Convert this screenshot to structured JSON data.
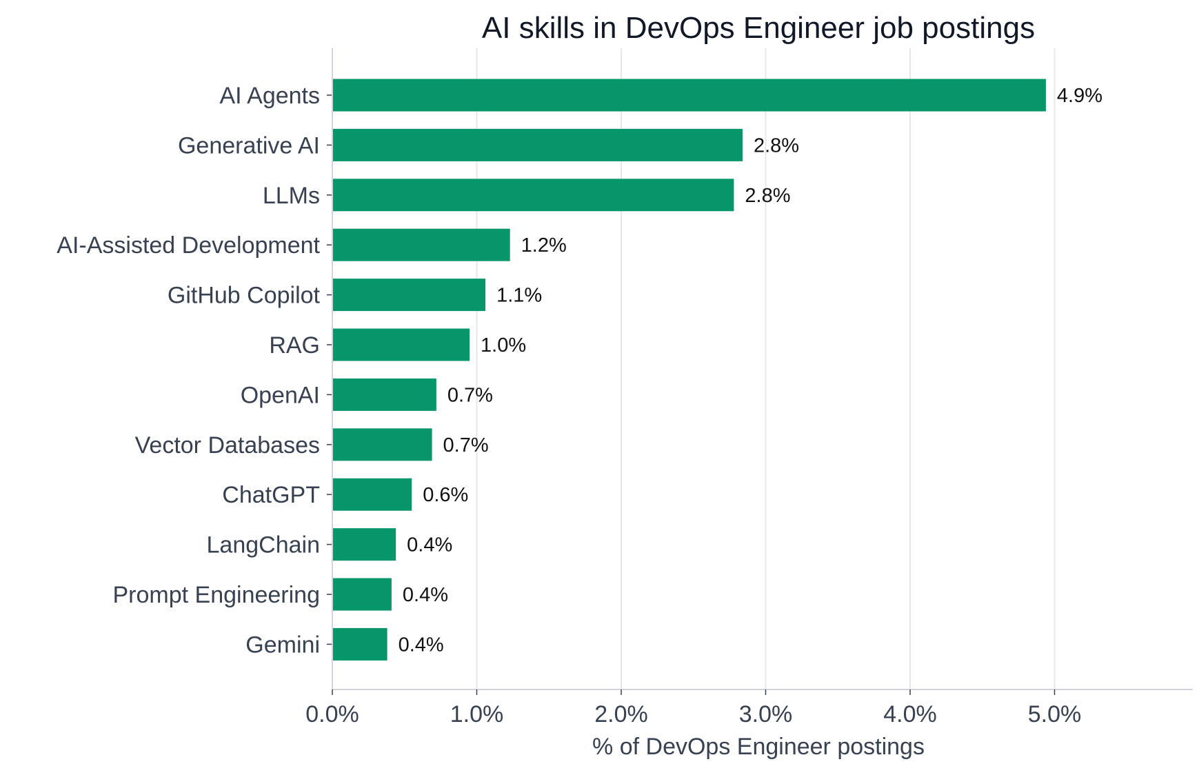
{
  "chart_data": {
    "type": "bar",
    "orientation": "horizontal",
    "title": "AI skills in DevOps Engineer job postings",
    "xlabel": "% of DevOps Engineer postings",
    "ylabel": "",
    "xlim": [
      0,
      5.9
    ],
    "xticks": [
      0,
      1,
      2,
      3,
      4,
      5
    ],
    "xtick_labels": [
      "0.0%",
      "1.0%",
      "2.0%",
      "3.0%",
      "4.0%",
      "5.0%"
    ],
    "grid": "vertical",
    "legend": "none",
    "bar_color": "#079669",
    "categories": [
      "AI Agents",
      "Generative AI",
      "LLMs",
      "AI-Assisted Development",
      "GitHub Copilot",
      "RAG",
      "OpenAI",
      "Vector Databases",
      "ChatGPT",
      "LangChain",
      "Prompt Engineering",
      "Gemini"
    ],
    "values": [
      4.94,
      2.84,
      2.78,
      1.23,
      1.06,
      0.95,
      0.72,
      0.69,
      0.55,
      0.44,
      0.41,
      0.38
    ],
    "value_labels": [
      "4.9%",
      "2.8%",
      "2.8%",
      "1.2%",
      "1.1%",
      "1.0%",
      "0.7%",
      "0.7%",
      "0.6%",
      "0.4%",
      "0.4%",
      "0.4%"
    ]
  }
}
